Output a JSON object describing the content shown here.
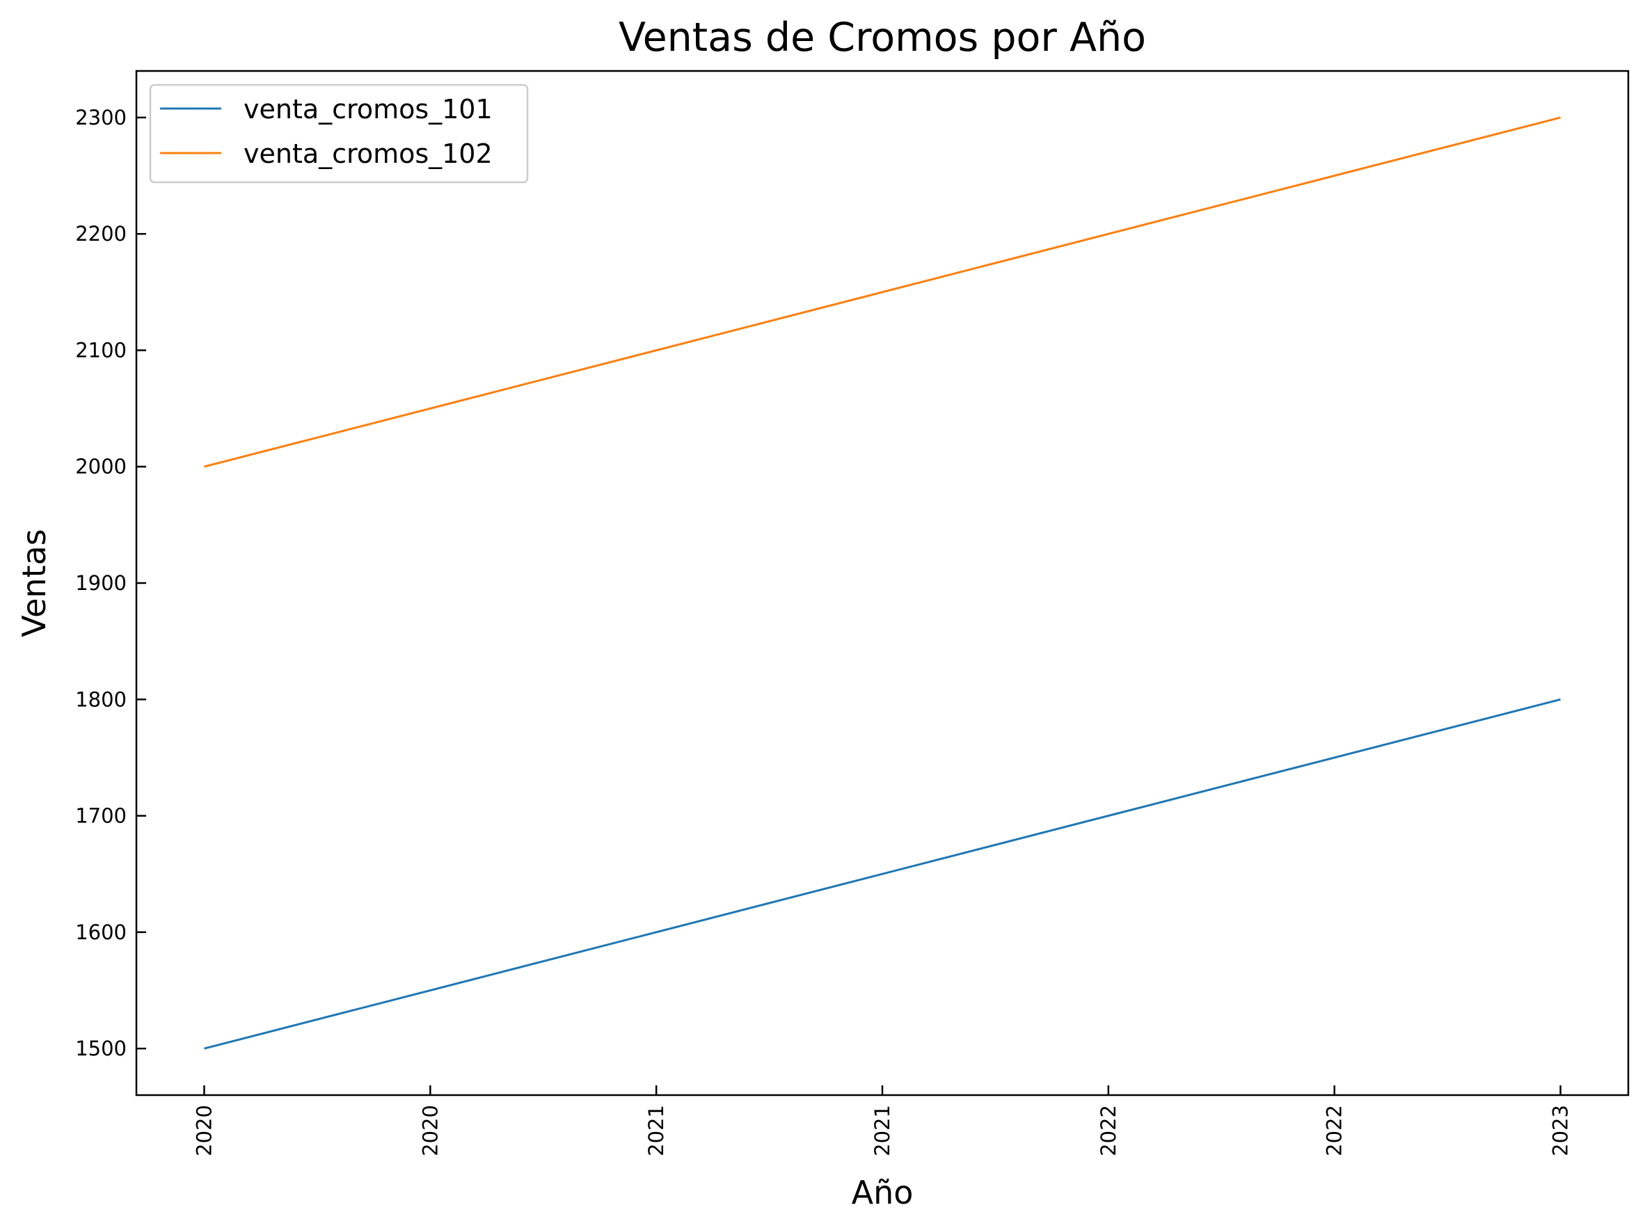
{
  "chart_data": {
    "type": "line",
    "title": "Ventas de Cromos por Año",
    "xlabel": "Año",
    "ylabel": "Ventas",
    "x": [
      2020,
      2021,
      2022,
      2023
    ],
    "x_ticks": [
      2020.0,
      2020.5,
      2021.0,
      2021.5,
      2022.0,
      2022.5,
      2023.0
    ],
    "x_tick_labels": [
      "2020",
      "2020",
      "2021",
      "2021",
      "2022",
      "2022",
      "2023"
    ],
    "xlim": [
      2019.85,
      2023.15
    ],
    "ylim": [
      1460,
      2340
    ],
    "y_ticks": [
      1500,
      1600,
      1700,
      1800,
      1900,
      2000,
      2100,
      2200,
      2300
    ],
    "series": [
      {
        "name": "venta_cromos_101",
        "values": [
          1500,
          1600,
          1700,
          1800
        ],
        "color": "#1f77b4"
      },
      {
        "name": "venta_cromos_102",
        "values": [
          2000,
          2100,
          2200,
          2300
        ],
        "color": "#ff7f0e"
      }
    ],
    "legend": "top-left",
    "grid": false
  }
}
